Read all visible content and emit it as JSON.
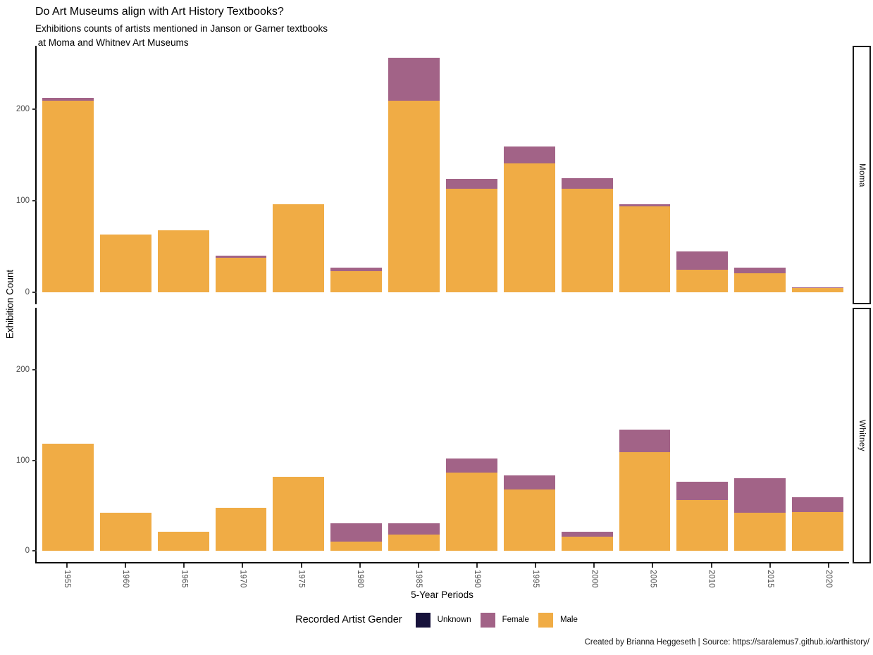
{
  "header": {
    "title": "Do Art Museums align with Art History Textbooks?",
    "subtitle_line1": "Exhibitions counts of artists mentioned in Janson or Garner textbooks",
    "subtitle_line2": " at Moma and Whitney Art Museums"
  },
  "caption": "Created by Brianna Heggeseth | Source: https://saralemus7.github.io/arthistory/",
  "legend": {
    "title": "Recorded Artist Gender",
    "items": [
      {
        "label": "Unknown",
        "color": "#17123B"
      },
      {
        "label": "Female",
        "color": "#A26387"
      },
      {
        "label": "Male",
        "color": "#F0AC45"
      }
    ]
  },
  "chart_data": {
    "type": "bar",
    "stacked": true,
    "title": "Do Art Museums align with Art History Textbooks?",
    "xlabel": "5-Year Periods",
    "ylabel": "Exhibition Count",
    "yticks": [
      0,
      100,
      200
    ],
    "ylim": [
      0,
      269
    ],
    "grid": false,
    "legend_position": "bottom",
    "categories": [
      "1955",
      "1960",
      "1965",
      "1970",
      "1975",
      "1980",
      "1985",
      "1990",
      "1995",
      "2000",
      "2005",
      "2010",
      "2015",
      "2020"
    ],
    "facets": [
      {
        "name": "Moma",
        "series": [
          {
            "name": "Unknown",
            "color": "#17123B",
            "values": [
              0,
              0,
              0,
              0,
              0,
              0,
              0,
              0,
              0,
              0,
              0,
              0,
              0,
              0
            ]
          },
          {
            "name": "Female",
            "color": "#A26387",
            "values": [
              3,
              0,
              0,
              2,
              0,
              4,
              47,
              11,
              18,
              12,
              2,
              20,
              6,
              1
            ]
          },
          {
            "name": "Male",
            "color": "#F0AC45",
            "values": [
              209,
              63,
              68,
              38,
              96,
              23,
              209,
              113,
              141,
              113,
              94,
              25,
              21,
              5
            ]
          }
        ]
      },
      {
        "name": "Whitney",
        "series": [
          {
            "name": "Unknown",
            "color": "#17123B",
            "values": [
              0,
              0,
              0,
              0,
              0,
              0,
              0,
              0,
              0,
              0,
              0,
              0,
              0,
              0
            ]
          },
          {
            "name": "Female",
            "color": "#A26387",
            "values": [
              0,
              0,
              0,
              0,
              0,
              20,
              12,
              16,
              15,
              6,
              25,
              20,
              38,
              16
            ]
          },
          {
            "name": "Male",
            "color": "#F0AC45",
            "values": [
              118,
              42,
              21,
              47,
              82,
              10,
              18,
              86,
              68,
              15,
              109,
              56,
              42,
              43
            ]
          }
        ]
      }
    ]
  }
}
